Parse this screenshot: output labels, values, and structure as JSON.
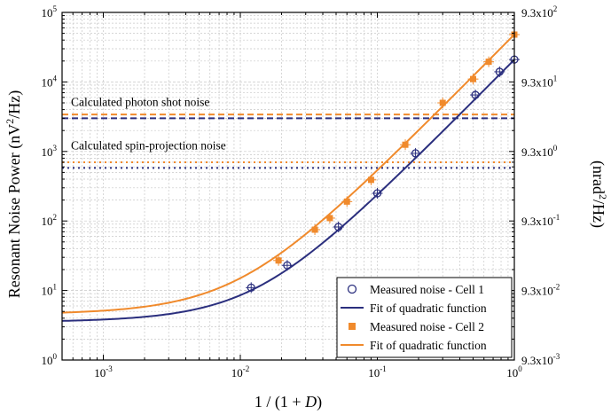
{
  "chart_data": {
    "type": "scatter",
    "xscale": "log",
    "yscale": "log",
    "xlim": [
      0.0005,
      1
    ],
    "ylim": [
      1,
      100000
    ],
    "xlabel": "1 / (1 + D)",
    "ylabel": "Resonant Noise Power (nV²/Hz)",
    "ylabel_right": "(nrad²/Hz)",
    "grid": true,
    "x_ticks": [
      {
        "value": 0.001,
        "mant": "10",
        "exp": "-3"
      },
      {
        "value": 0.01,
        "mant": "10",
        "exp": "-2"
      },
      {
        "value": 0.1,
        "mant": "10",
        "exp": "-1"
      },
      {
        "value": 1,
        "mant": "10",
        "exp": "0"
      }
    ],
    "y_ticks": [
      {
        "value": 1,
        "mant": "10",
        "exp": "0"
      },
      {
        "value": 10,
        "mant": "10",
        "exp": "1"
      },
      {
        "value": 100,
        "mant": "10",
        "exp": "2"
      },
      {
        "value": 1000,
        "mant": "10",
        "exp": "3"
      },
      {
        "value": 10000,
        "mant": "10",
        "exp": "4"
      },
      {
        "value": 100000,
        "mant": "10",
        "exp": "5"
      }
    ],
    "y2_ticks": [
      {
        "value": 1,
        "mant": "9.3x10",
        "exp": "-3"
      },
      {
        "value": 10,
        "mant": "9.3x10",
        "exp": "-2"
      },
      {
        "value": 100,
        "mant": "9.3x10",
        "exp": "-1"
      },
      {
        "value": 1000,
        "mant": "9.3x10",
        "exp": "0"
      },
      {
        "value": 10000,
        "mant": "9.3x10",
        "exp": "1"
      },
      {
        "value": 100000,
        "mant": "9.3x10",
        "exp": "2"
      }
    ],
    "series": [
      {
        "name": "Measured noise - Cell 1",
        "kind": "scatter",
        "marker": "open-circle",
        "color": "#2b2f7e",
        "x": [
          0.012,
          0.022,
          0.052,
          0.1,
          0.19,
          0.52,
          0.78,
          1.0
        ],
        "y": [
          11,
          23,
          82,
          250,
          940,
          6500,
          14000,
          21000
        ]
      },
      {
        "name": "Fit of quadratic function",
        "kind": "line",
        "color": "#2b2f7e",
        "c0": 3.5,
        "c1": 300,
        "c2": 20600
      },
      {
        "name": "Measured noise - Cell 2",
        "kind": "scatter",
        "marker": "filled-square",
        "color": "#f08a2c",
        "x": [
          0.019,
          0.035,
          0.045,
          0.06,
          0.09,
          0.16,
          0.3,
          0.5,
          0.65,
          1.0
        ],
        "y": [
          27,
          75,
          110,
          190,
          390,
          1250,
          5000,
          11000,
          19500,
          48000
        ]
      },
      {
        "name": "Fit of quadratic function",
        "kind": "line",
        "color": "#f08a2c",
        "c0": 4.5,
        "c1": 580,
        "c2": 47500
      }
    ],
    "reference_lines": [
      {
        "value": 3000,
        "color": "#2b2f7e",
        "style": "dashed"
      },
      {
        "value": 3400,
        "color": "#f08a2c",
        "style": "dashed"
      },
      {
        "value": 580,
        "color": "#2b2f7e",
        "style": "dotted"
      },
      {
        "value": 700,
        "color": "#f08a2c",
        "style": "dotted"
      }
    ],
    "annotations": [
      {
        "text": "Calculated photon shot noise",
        "y": 3800
      },
      {
        "text": "Calculated spin-projection noise",
        "y": 900
      }
    ],
    "legend_position": "bottom-right"
  }
}
